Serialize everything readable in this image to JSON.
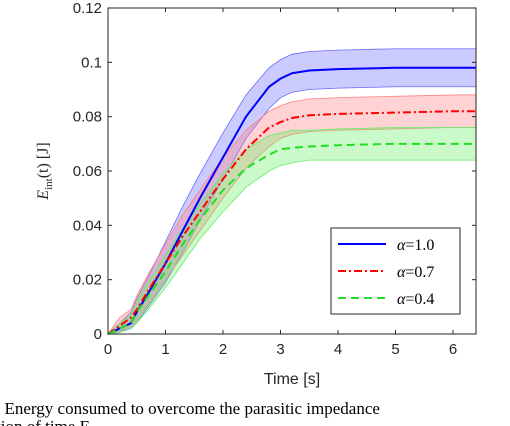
{
  "chart_data": {
    "type": "line",
    "title": "",
    "xlabel": "Time [s]",
    "ylabel_main": "E",
    "ylabel_sub": "int",
    "ylabel_rest": "(t)  [J]",
    "xlim": [
      0,
      6.4
    ],
    "ylim": [
      0,
      0.12
    ],
    "xticks": [
      0,
      1,
      2,
      3,
      4,
      5,
      6
    ],
    "yticks": [
      0,
      0.02,
      0.04,
      0.06,
      0.08,
      0.1,
      0.12
    ],
    "xtick_labels": [
      "0",
      "1",
      "2",
      "3",
      "4",
      "5",
      "6"
    ],
    "ytick_labels": [
      "0",
      "0.02",
      "0.04",
      "0.06",
      "0.08",
      "0.1",
      "0.12"
    ],
    "grid": false,
    "legend_position": "lower-right",
    "x": [
      0,
      0.2,
      0.4,
      0.5,
      0.7,
      1.0,
      1.3,
      1.6,
      2.0,
      2.4,
      2.8,
      3.0,
      3.2,
      3.5,
      4.0,
      5.0,
      6.0,
      6.4
    ],
    "series": [
      {
        "name": "α=1.0",
        "symbol": "α",
        "value_text": "=1.0",
        "color": "#0000ff",
        "dash": "solid",
        "band_color": "#6b6bff",
        "values": [
          0,
          0.002,
          0.004,
          0.008,
          0.015,
          0.026,
          0.038,
          0.05,
          0.065,
          0.08,
          0.091,
          0.094,
          0.096,
          0.097,
          0.0975,
          0.098,
          0.098,
          0.098
        ],
        "lower": [
          0,
          0.001,
          0.002,
          0.004,
          0.01,
          0.019,
          0.03,
          0.042,
          0.057,
          0.072,
          0.083,
          0.087,
          0.089,
          0.09,
          0.0905,
          0.091,
          0.091,
          0.091
        ],
        "upper": [
          0,
          0.004,
          0.008,
          0.013,
          0.021,
          0.034,
          0.047,
          0.059,
          0.074,
          0.088,
          0.098,
          0.101,
          0.103,
          0.104,
          0.1045,
          0.105,
          0.105,
          0.105
        ]
      },
      {
        "name": "α=0.7",
        "symbol": "α",
        "value_text": "=0.7",
        "color": "#ff0000",
        "dash": "dashdot",
        "band_color": "#ff8080",
        "values": [
          0,
          0.003,
          0.006,
          0.009,
          0.016,
          0.026,
          0.036,
          0.045,
          0.057,
          0.068,
          0.076,
          0.078,
          0.0795,
          0.0805,
          0.081,
          0.0815,
          0.082,
          0.082
        ],
        "lower": [
          0,
          0.001,
          0.003,
          0.005,
          0.011,
          0.02,
          0.029,
          0.038,
          0.05,
          0.061,
          0.069,
          0.072,
          0.0735,
          0.0745,
          0.075,
          0.0755,
          0.076,
          0.076
        ],
        "upper": [
          0,
          0.006,
          0.009,
          0.014,
          0.022,
          0.033,
          0.044,
          0.053,
          0.065,
          0.075,
          0.082,
          0.084,
          0.0855,
          0.0865,
          0.087,
          0.0875,
          0.088,
          0.088
        ]
      },
      {
        "name": "α=0.4",
        "symbol": "α",
        "value_text": "=0.4",
        "color": "#22dd22",
        "dash": "dashed",
        "band_color": "#66ee66",
        "values": [
          0,
          0.002,
          0.004,
          0.008,
          0.014,
          0.023,
          0.033,
          0.042,
          0.053,
          0.061,
          0.066,
          0.068,
          0.0685,
          0.069,
          0.0695,
          0.07,
          0.07,
          0.07
        ],
        "lower": [
          0,
          0.0005,
          0.002,
          0.004,
          0.009,
          0.017,
          0.026,
          0.035,
          0.045,
          0.054,
          0.06,
          0.062,
          0.063,
          0.064,
          0.064,
          0.064,
          0.064,
          0.064
        ],
        "upper": [
          0,
          0.004,
          0.007,
          0.012,
          0.019,
          0.029,
          0.039,
          0.048,
          0.059,
          0.068,
          0.073,
          0.074,
          0.075,
          0.075,
          0.0755,
          0.076,
          0.076,
          0.076
        ]
      }
    ]
  },
  "caption": {
    "line1": ".  Energy consumed to overcome the parasitic impedance",
    "line2": "tion of time E"
  }
}
